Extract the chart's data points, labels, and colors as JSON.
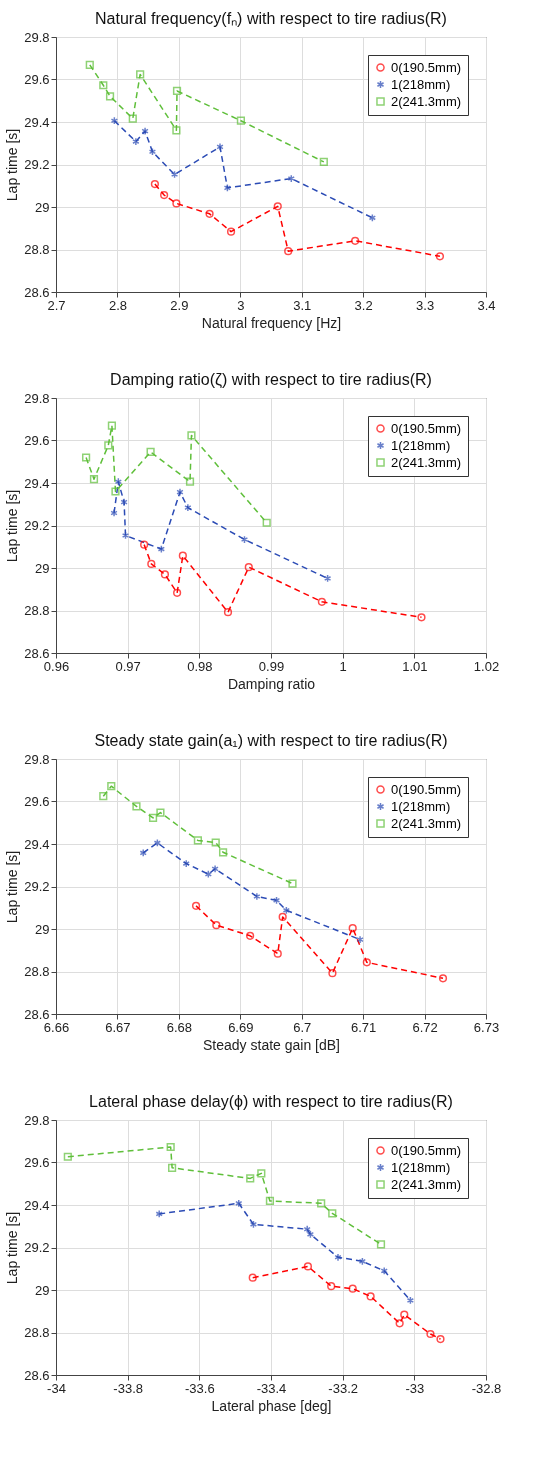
{
  "chart_data": [
    {
      "type": "line",
      "title": "Natural frequency(fₙ) with respect to tire radius(R)",
      "xlabel": "Natural frequency [Hz]",
      "ylabel": "Lap time [s]",
      "xlim": [
        2.7,
        3.4
      ],
      "xticks": [
        2.7,
        2.8,
        2.9,
        3,
        3.1,
        3.2,
        3.3,
        3.4
      ],
      "ylim": [
        28.6,
        29.8
      ],
      "yticks": [
        28.6,
        28.8,
        29,
        29.2,
        29.4,
        29.6,
        29.8
      ],
      "grid": true,
      "legend": "top right",
      "line_style": "dashed",
      "series": [
        {
          "name": "0(190.5mm)",
          "color": "#ff0000",
          "marker": "circle",
          "x": [
            2.861,
            2.876,
            2.896,
            2.95,
            2.985,
            3.061,
            3.078,
            3.187,
            3.325
          ],
          "values": [
            29.108,
            29.056,
            29.017,
            28.968,
            28.884,
            29.003,
            28.792,
            28.841,
            28.768
          ]
        },
        {
          "name": "1(218mm)",
          "color": "#2b4bb5",
          "marker": "cross",
          "x": [
            2.795,
            2.83,
            2.845,
            2.857,
            2.893,
            2.967,
            2.979,
            3.083,
            3.215
          ],
          "values": [
            29.406,
            29.308,
            29.357,
            29.26,
            29.153,
            29.283,
            29.09,
            29.134,
            28.949
          ]
        },
        {
          "name": "2(241.3mm)",
          "color": "#5fbf3a",
          "marker": "square",
          "x": [
            2.755,
            2.777,
            2.788,
            2.825,
            2.837,
            2.896,
            2.897,
            3.001,
            3.136
          ],
          "values": [
            29.669,
            29.573,
            29.521,
            29.416,
            29.624,
            29.361,
            29.546,
            29.406,
            29.212
          ]
        }
      ]
    },
    {
      "type": "line",
      "title": "Damping ratio(ζ) with respect to tire radius(R)",
      "xlabel": "Damping ratio",
      "ylabel": "Lap time [s]",
      "xlim": [
        0.96,
        1.02
      ],
      "xticks": [
        0.96,
        0.97,
        0.98,
        0.99,
        1,
        1.01,
        1.02
      ],
      "ylim": [
        28.6,
        29.8
      ],
      "yticks": [
        28.6,
        28.8,
        29,
        29.2,
        29.4,
        29.6,
        29.8
      ],
      "grid": true,
      "legend": "top right",
      "line_style": "dashed",
      "series": [
        {
          "name": "0(190.5mm)",
          "color": "#ff0000",
          "marker": "circle",
          "x": [
            0.9723,
            0.9733,
            0.9752,
            0.9769,
            0.9777,
            0.984,
            0.9869,
            0.9971,
            1.011
          ],
          "values": [
            29.11,
            29.019,
            28.97,
            28.883,
            29.058,
            28.792,
            29.004,
            28.841,
            28.768
          ]
        },
        {
          "name": "1(218mm)",
          "color": "#2b4bb5",
          "marker": "cross",
          "x": [
            0.9681,
            0.9687,
            0.9695,
            0.9697,
            0.9747,
            0.9773,
            0.9784,
            0.9863,
            0.9979
          ],
          "values": [
            29.259,
            29.406,
            29.31,
            29.153,
            29.089,
            29.357,
            29.284,
            29.134,
            28.951
          ]
        },
        {
          "name": "2(241.3mm)",
          "color": "#5fbf3a",
          "marker": "square",
          "x": [
            0.9642,
            0.9653,
            0.9673,
            0.9678,
            0.9683,
            0.9732,
            0.9787,
            0.9789,
            0.9894
          ],
          "values": [
            29.52,
            29.418,
            29.577,
            29.67,
            29.36,
            29.546,
            29.406,
            29.624,
            29.213
          ]
        }
      ]
    },
    {
      "type": "line",
      "title": "Steady state gain(a₁) with respect to tire radius(R)",
      "xlabel": "Steady state gain [dB]",
      "ylabel": "Lap time [s]",
      "xlim": [
        6.66,
        6.73
      ],
      "xticks": [
        6.66,
        6.67,
        6.68,
        6.69,
        6.7,
        6.71,
        6.72,
        6.73
      ],
      "ylim": [
        28.6,
        29.8
      ],
      "yticks": [
        28.6,
        28.8,
        29,
        29.2,
        29.4,
        29.6,
        29.8
      ],
      "grid": true,
      "legend": "top right",
      "line_style": "dashed",
      "series": [
        {
          "name": "0(190.5mm)",
          "color": "#ff0000",
          "marker": "circle",
          "x": [
            6.6828,
            6.6861,
            6.6916,
            6.6961,
            6.6969,
            6.705,
            6.7083,
            6.7106,
            6.723
          ],
          "values": [
            29.109,
            29.018,
            28.968,
            28.884,
            29.057,
            28.792,
            29.004,
            28.843,
            28.768
          ]
        },
        {
          "name": "1(218mm)",
          "color": "#2b4bb5",
          "marker": "cross",
          "x": [
            6.6742,
            6.6765,
            6.6812,
            6.6848,
            6.6859,
            6.6927,
            6.6959,
            6.6975,
            6.7095
          ],
          "values": [
            29.358,
            29.405,
            29.308,
            29.258,
            29.283,
            29.153,
            29.135,
            29.088,
            28.95
          ]
        },
        {
          "name": "2(241.3mm)",
          "color": "#5fbf3a",
          "marker": "square",
          "x": [
            6.6677,
            6.669,
            6.6731,
            6.6758,
            6.677,
            6.6831,
            6.686,
            6.6872,
            6.6985
          ],
          "values": [
            29.625,
            29.672,
            29.577,
            29.523,
            29.548,
            29.417,
            29.407,
            29.361,
            29.214
          ]
        }
      ]
    },
    {
      "type": "line",
      "title": "Lateral phase delay(ϕ) with respect to tire radius(R)",
      "xlabel": "Lateral phase [deg]",
      "ylabel": "Lap time [s]",
      "xlim": [
        -34,
        -32.8
      ],
      "xticks": [
        -34,
        -33.8,
        -33.6,
        -33.4,
        -33.2,
        -33,
        -32.8
      ],
      "ylim": [
        28.6,
        29.8
      ],
      "yticks": [
        28.6,
        28.8,
        29,
        29.2,
        29.4,
        29.6,
        29.8
      ],
      "grid": true,
      "legend": "top right",
      "line_style": "dashed",
      "series": [
        {
          "name": "0(190.5mm)",
          "color": "#ff0000",
          "marker": "circle",
          "x": [
            -33.451,
            -33.297,
            -33.232,
            -33.172,
            -33.122,
            -33.041,
            -33.028,
            -32.955,
            -32.927
          ],
          "values": [
            29.058,
            29.111,
            29.018,
            29.006,
            28.97,
            28.843,
            28.884,
            28.793,
            28.769
          ]
        },
        {
          "name": "1(218mm)",
          "color": "#2b4bb5",
          "marker": "cross",
          "x": [
            -33.712,
            -33.49,
            -33.449,
            -33.299,
            -33.29,
            -33.213,
            -33.145,
            -33.084,
            -33.011
          ],
          "values": [
            29.358,
            29.408,
            29.309,
            29.286,
            29.262,
            29.154,
            29.135,
            29.09,
            28.951
          ]
        },
        {
          "name": "2(241.3mm)",
          "color": "#5fbf3a",
          "marker": "square",
          "x": [
            -33.967,
            -33.68,
            -33.676,
            -33.458,
            -33.427,
            -33.403,
            -33.26,
            -33.229,
            -33.093
          ],
          "values": [
            29.627,
            29.673,
            29.575,
            29.525,
            29.549,
            29.419,
            29.408,
            29.361,
            29.215
          ]
        }
      ]
    }
  ]
}
